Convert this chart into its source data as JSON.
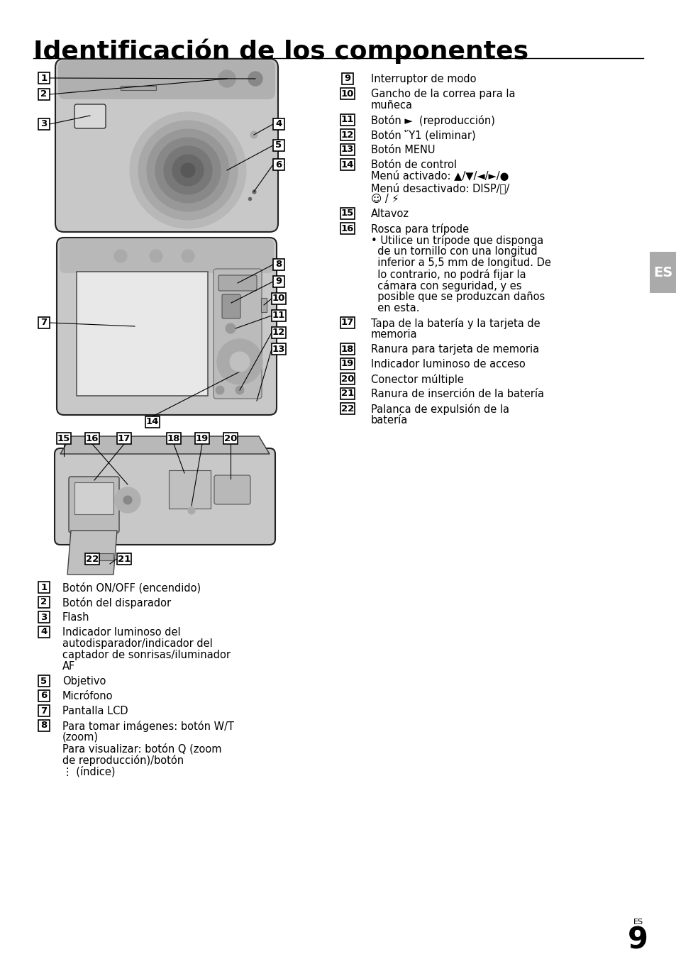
{
  "title": "Identificación de los componentes",
  "bg_color": "#ffffff",
  "text_color": "#000000",
  "title_fontsize": 26,
  "body_fontsize": 10.5,
  "right_col_items": [
    {
      "num": "9",
      "text": "Interruptor de modo"
    },
    {
      "num": "10",
      "text": "Gancho de la correa para la\nmuñeca"
    },
    {
      "num": "11",
      "text": "Botón ►  (reproducción)"
    },
    {
      "num": "12",
      "text": "Botón Ὕ1 (eliminar)"
    },
    {
      "num": "13",
      "text": "Botón MENU"
    },
    {
      "num": "14",
      "text": "Botón de control\nMenú activado: ▲/▼/◄/►/●\nMenú desactivado: DISP/ඞ/\n☺ / ⚡"
    },
    {
      "num": "15",
      "text": "Altavoz"
    },
    {
      "num": "16",
      "text": "Rosca para trípode\n• Utilice un trípode que disponga\n  de un tornillo con una longitud\n  inferior a 5,5 mm de longitud. De\n  lo contrario, no podrá fijar la\n  cámara con seguridad, y es\n  posible que se produzcan daños\n  en esta."
    },
    {
      "num": "17",
      "text": "Tapa de la batería y la tarjeta de\nmemoria"
    },
    {
      "num": "18",
      "text": "Ranura para tarjeta de memoria"
    },
    {
      "num": "19",
      "text": "Indicador luminoso de acceso"
    },
    {
      "num": "20",
      "text": "Conector múltiple"
    },
    {
      "num": "21",
      "text": "Ranura de inserción de la batería"
    },
    {
      "num": "22",
      "text": "Palanca de expulsión de la\nbatería"
    }
  ],
  "left_col_items": [
    {
      "num": "1",
      "text": "Botón ON/OFF (encendido)"
    },
    {
      "num": "2",
      "text": "Botón del disparador"
    },
    {
      "num": "3",
      "text": "Flash"
    },
    {
      "num": "4",
      "text": "Indicador luminoso del\nautodisparador/indicador del\ncaptador de sonrisas/iluminador\nAF"
    },
    {
      "num": "5",
      "text": "Objetivo"
    },
    {
      "num": "6",
      "text": "Micrófono"
    },
    {
      "num": "7",
      "text": "Pantalla LCD"
    },
    {
      "num": "8",
      "text": "Para tomar imágenes: botón W/T\n(zoom)\nPara visualizar: botón Q (zoom\nde reproducción)/botón\n⋮ (índice)"
    }
  ],
  "es_label": "ES",
  "page_num": "9",
  "page_label": "ES"
}
